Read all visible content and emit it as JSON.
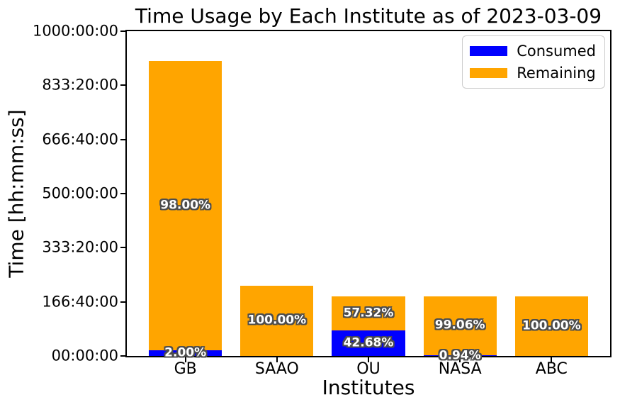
{
  "chart_data": {
    "type": "bar",
    "stacked": true,
    "title": "Time Usage by Each Institute as of 2023-03-09",
    "xlabel": "Institutes",
    "ylabel": "Time [hh:mm:ss]",
    "categories": [
      "GB",
      "SAAO",
      "OU",
      "NASA",
      "ABC"
    ],
    "series": [
      {
        "name": "Consumed",
        "color": "#0000ff",
        "values_hours": [
          18.16,
          0,
          78.74,
          1.73,
          0
        ],
        "percent_labels": [
          "2.00%",
          null,
          "42.68%",
          "0.94%",
          null
        ]
      },
      {
        "name": "Remaining",
        "color": "#ffa500",
        "values_hours": [
          889.84,
          217,
          105.76,
          182.77,
          184.5
        ],
        "percent_labels": [
          "98.00%",
          "100.00%",
          "57.32%",
          "99.06%",
          "100.00%"
        ]
      }
    ],
    "totals_hours_estimated": [
      908,
      217,
      184.5,
      184.5,
      184.5
    ],
    "ylim_hours": [
      0,
      1000
    ],
    "yticks": [
      {
        "hours": 0,
        "label": "00:00:00"
      },
      {
        "hours": 166.6667,
        "label": "166:40:00"
      },
      {
        "hours": 333.3333,
        "label": "333:20:00"
      },
      {
        "hours": 500,
        "label": "500:00:00"
      },
      {
        "hours": 666.6667,
        "label": "666:40:00"
      },
      {
        "hours": 833.3333,
        "label": "833:20:00"
      },
      {
        "hours": 1000,
        "label": "1000:00:00"
      }
    ],
    "grid": false,
    "legend_position": "upper right"
  },
  "colors": {
    "consumed": "#0000ff",
    "remaining": "#ffa500",
    "bar_label_fill": "#ffffff",
    "bar_label_outline": "#4d4d4d",
    "axis": "#000000",
    "legend_border": "#cccccc",
    "background": "#ffffff"
  }
}
